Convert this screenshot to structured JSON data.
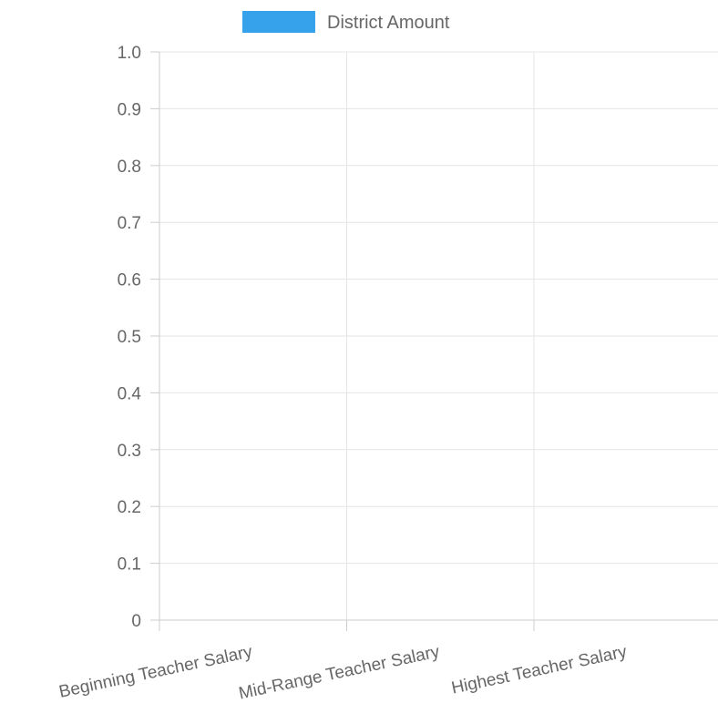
{
  "chart_data": {
    "type": "bar",
    "categories": [
      "Beginning Teacher Salary",
      "Mid-Range Teacher Salary",
      "Highest Teacher Salary"
    ],
    "series": [
      {
        "name": "District Amount",
        "color": "#36a2eb",
        "values": [
          null,
          null,
          null
        ]
      }
    ],
    "y_ticks": [
      "1.0",
      "0.9",
      "0.8",
      "0.7",
      "0.6",
      "0.5",
      "0.4",
      "0.3",
      "0.2",
      "0.1",
      "0"
    ],
    "ylim": [
      0,
      1
    ],
    "grid": true,
    "legend_position": "top"
  }
}
